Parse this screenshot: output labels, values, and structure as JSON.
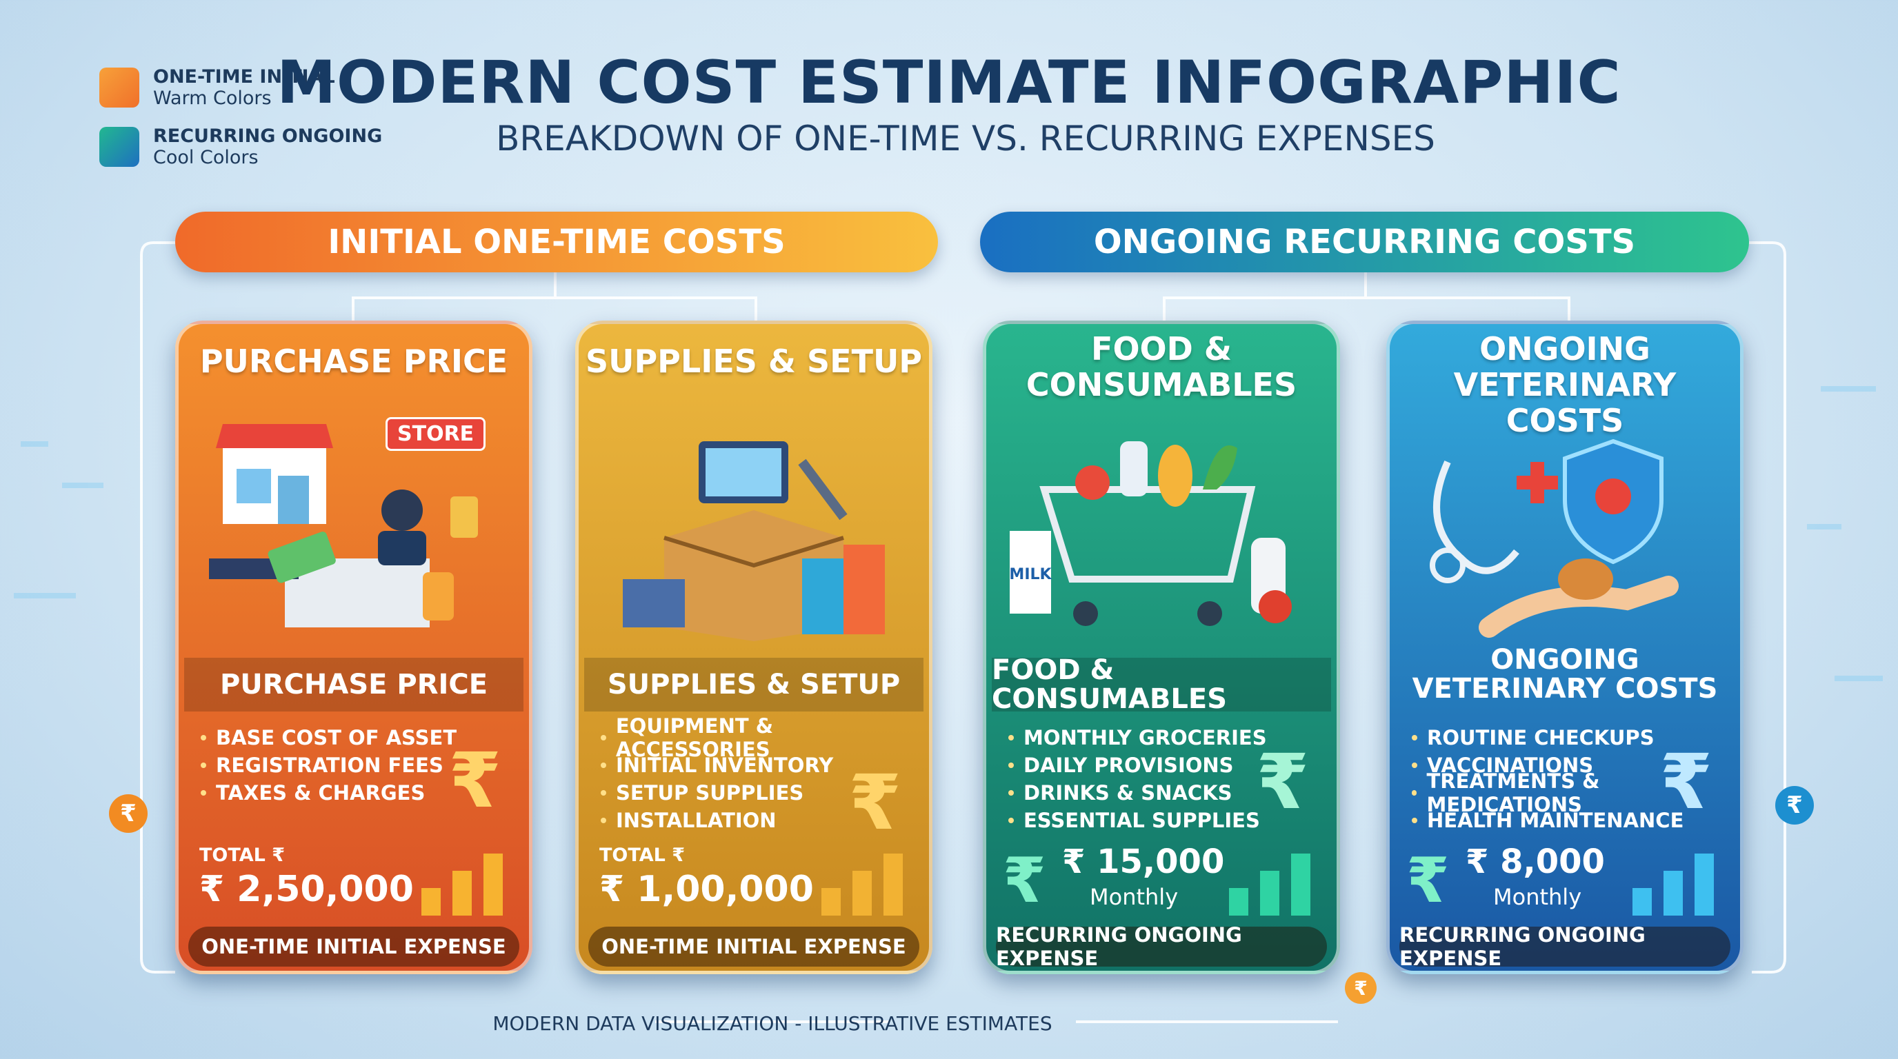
{
  "legend": [
    {
      "title": "ONE-TIME INITIAL",
      "subtitle": "Warm Colors"
    },
    {
      "title": "RECURRING ONGOING",
      "subtitle": "Cool Colors"
    }
  ],
  "header": {
    "title": "MODERN COST ESTIMATE INFOGRAPHIC",
    "subtitle": "BREAKDOWN OF ONE-TIME VS. RECURRING EXPENSES"
  },
  "currency_symbol": "₹",
  "groups": [
    {
      "label": "INITIAL ONE-TIME COSTS"
    },
    {
      "label": "ONGOING RECURRING COSTS"
    }
  ],
  "cards": [
    {
      "title_lines": [
        "PURCHASE PRICE"
      ],
      "illustration_label": "STORE",
      "heading_lines": [
        "PURCHASE PRICE"
      ],
      "items": [
        "BASE COST OF ASSET",
        "REGISTRATION FEES",
        "TAXES & CHARGES"
      ],
      "total_label": "TOTAL ₹",
      "total": "₹ 2,50,000",
      "footer": "ONE-TIME INITIAL EXPENSE"
    },
    {
      "title_lines": [
        "SUPPLIES & SETUP"
      ],
      "heading_lines": [
        "SUPPLIES & SETUP"
      ],
      "items": [
        "EQUIPMENT & ACCESSORIES",
        "INITIAL INVENTORY",
        "SETUP SUPPLIES",
        "INSTALLATION"
      ],
      "total_label": "TOTAL ₹",
      "total": "₹ 1,00,000",
      "footer": "ONE-TIME INITIAL EXPENSE"
    },
    {
      "title_lines": [
        "FOOD &",
        "CONSUMABLES"
      ],
      "illustration_label": "MILK",
      "heading_lines": [
        "FOOD & CONSUMABLES"
      ],
      "items": [
        "MONTHLY GROCERIES",
        "DAILY PROVISIONS",
        "DRINKS & SNACKS",
        "ESSENTIAL SUPPLIES"
      ],
      "total": "₹ 15,000",
      "period": "Monthly",
      "footer": "RECURRING ONGOING EXPENSE"
    },
    {
      "title_lines": [
        "ONGOING",
        "VETERINARY COSTS"
      ],
      "heading_lines": [
        "ONGOING",
        "VETERINARY COSTS"
      ],
      "items": [
        "ROUTINE CHECKUPS",
        "VACCINATIONS",
        "TREATMENTS & MEDICATIONS",
        "HEALTH MAINTENANCE"
      ],
      "total": "₹ 8,000",
      "period": "Monthly",
      "footer": "RECURRING ONGOING EXPENSE"
    }
  ],
  "footer_note": "MODERN DATA VISUALIZATION - ILLUSTRATIVE ESTIMATES"
}
